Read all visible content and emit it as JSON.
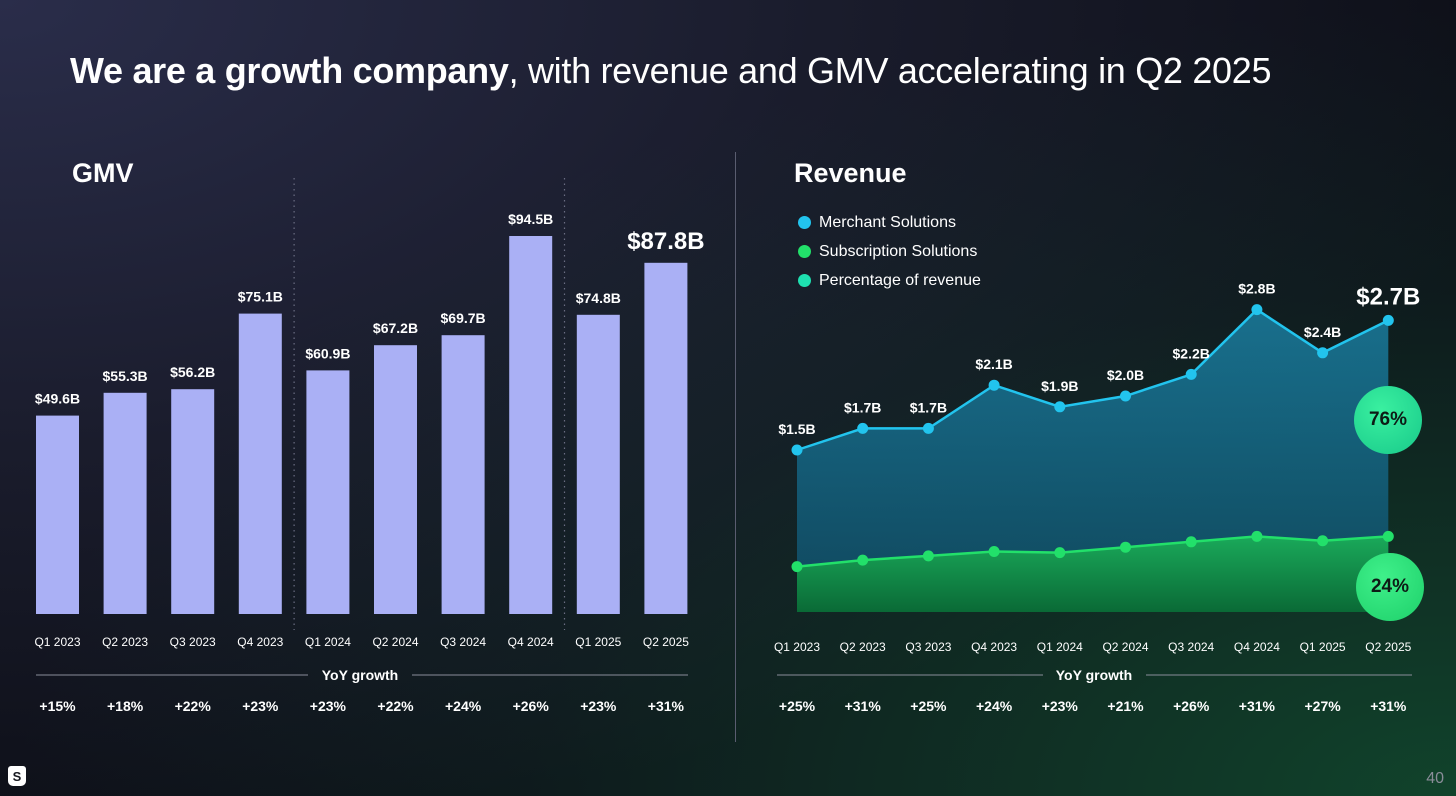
{
  "title": {
    "bold": "We are a growth company",
    "rest": ", with revenue and GMV accelerating in Q2 2025"
  },
  "gmv": {
    "title": "GMV",
    "yoy_label": "YoY growth"
  },
  "revenue": {
    "title": "Revenue",
    "yoy_label": "YoY growth",
    "legend": [
      {
        "label": "Merchant Solutions",
        "color": "#22c4ee"
      },
      {
        "label": "Subscription Solutions",
        "color": "#22e06a"
      },
      {
        "label": "Percentage of revenue",
        "color": "#1ee0b0"
      }
    ],
    "badges": {
      "merchant": "76%",
      "subscription": "24%"
    }
  },
  "page_number": "40",
  "logo_glyph": "S",
  "colors": {
    "bar": "#aab0f5",
    "merchant": "#22c4ee",
    "subscription": "#22e06a"
  },
  "chart_data": [
    {
      "type": "bar",
      "title": "GMV",
      "categories": [
        "Q1 2023",
        "Q2 2023",
        "Q3 2023",
        "Q4 2023",
        "Q1 2024",
        "Q2 2024",
        "Q3 2024",
        "Q4 2024",
        "Q1 2025",
        "Q2 2025"
      ],
      "values": [
        49.6,
        55.3,
        56.2,
        75.1,
        60.9,
        67.2,
        69.7,
        94.5,
        74.8,
        87.8
      ],
      "labels": [
        "$49.6B",
        "$55.3B",
        "$56.2B",
        "$75.1B",
        "$60.9B",
        "$67.2B",
        "$69.7B",
        "$94.5B",
        "$74.8B",
        "$87.8B"
      ],
      "yoy_growth": [
        "+15%",
        "+18%",
        "+22%",
        "+23%",
        "+23%",
        "+22%",
        "+24%",
        "+26%",
        "+23%",
        "+31%"
      ],
      "ylim": [
        0,
        100
      ],
      "xlabel": "",
      "ylabel": ""
    },
    {
      "type": "area",
      "title": "Revenue",
      "categories": [
        "Q1 2023",
        "Q2 2023",
        "Q3 2023",
        "Q4 2023",
        "Q1 2024",
        "Q2 2024",
        "Q3 2024",
        "Q4 2024",
        "Q1 2025",
        "Q2 2025"
      ],
      "series": [
        {
          "name": "Merchant Solutions",
          "values": [
            1.5,
            1.7,
            1.7,
            2.1,
            1.9,
            2.0,
            2.2,
            2.8,
            2.4,
            2.7
          ],
          "labels": [
            "$1.5B",
            "$1.7B",
            "$1.7B",
            "$2.1B",
            "$1.9B",
            "$2.0B",
            "$2.2B",
            "$2.8B",
            "$2.4B",
            "$2.7B"
          ]
        },
        {
          "name": "Subscription Solutions",
          "values": [
            0.42,
            0.48,
            0.52,
            0.56,
            0.55,
            0.6,
            0.65,
            0.7,
            0.66,
            0.7
          ]
        }
      ],
      "yoy_growth": [
        "+25%",
        "+31%",
        "+25%",
        "+24%",
        "+23%",
        "+21%",
        "+26%",
        "+31%",
        "+27%",
        "+31%"
      ],
      "ylim": [
        0,
        3.0
      ],
      "xlabel": "",
      "ylabel": ""
    }
  ]
}
